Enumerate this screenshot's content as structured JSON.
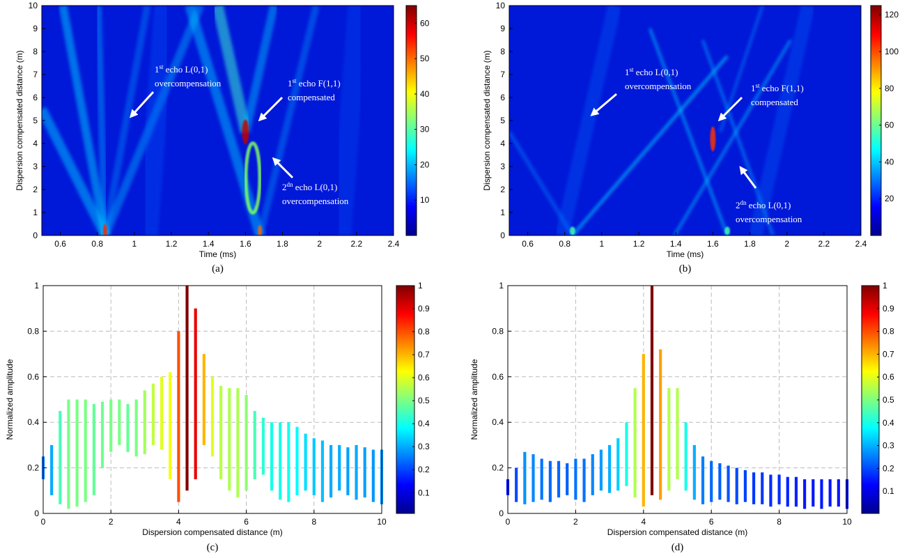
{
  "chart_data": [
    {
      "type": "heatmap",
      "caption": "(a)",
      "xlabel": "Time (ms)",
      "ylabel": "Dispersion compensated distance (m)",
      "xlim": [
        0.5,
        2.4
      ],
      "xticks": [
        0.6,
        0.8,
        1,
        1.2,
        1.4,
        1.6,
        1.8,
        2,
        2.2,
        2.4
      ],
      "ylim": [
        0,
        10
      ],
      "yticks": [
        0,
        1,
        2,
        3,
        4,
        5,
        6,
        7,
        8,
        9,
        10
      ],
      "colormap": "jet",
      "colorbar": {
        "lim": [
          0,
          65
        ],
        "ticks": [
          10,
          20,
          30,
          40,
          50,
          60
        ]
      },
      "annotations": [
        {
          "lead": "1",
          "sup": "st",
          "rest": " echo L(0,1)",
          "next": "overcompensation"
        },
        {
          "lead": "1",
          "sup": "st",
          "rest": " echo F(1,1)",
          "next": "compensated"
        },
        {
          "lead": "2",
          "sup": "dn",
          "rest": " echo L(0,1)",
          "next": "overcompensation"
        }
      ]
    },
    {
      "type": "heatmap",
      "caption": "(b)",
      "xlabel": "Time (ms)",
      "ylabel": "Dispersion compensated distance (m)",
      "xlim": [
        0.5,
        2.4
      ],
      "xticks": [
        0.6,
        0.8,
        1,
        1.2,
        1.4,
        1.6,
        1.8,
        2,
        2.2,
        2.4
      ],
      "ylim": [
        0,
        10
      ],
      "yticks": [
        0,
        1,
        2,
        3,
        4,
        5,
        6,
        7,
        8,
        9,
        10
      ],
      "colormap": "jet",
      "colorbar": {
        "lim": [
          0,
          125
        ],
        "ticks": [
          20,
          40,
          60,
          80,
          100,
          120
        ]
      },
      "annotations": [
        {
          "lead": "1",
          "sup": "st",
          "rest": " echo L(0,1)",
          "next": "overcompensation"
        },
        {
          "lead": "1",
          "sup": "st",
          "rest": " echo F(1,1)",
          "next": "compensated"
        },
        {
          "lead": "2",
          "sup": "dn",
          "rest": " echo L(0,1)",
          "next": "overcompensation"
        }
      ]
    },
    {
      "type": "range",
      "caption": "(c)",
      "xlabel": "Dispersion compensated distance (m)",
      "ylabel": "Normalized amplitude",
      "xlim": [
        0,
        10
      ],
      "xticks": [
        0,
        2,
        4,
        6,
        8,
        10
      ],
      "ylim": [
        0,
        1
      ],
      "yticks": [
        0,
        0.2,
        0.4,
        0.6,
        0.8,
        1
      ],
      "grid": true,
      "colormap": "jet",
      "colorbar": {
        "lim": [
          0.01,
          1
        ],
        "ticks": [
          0.1,
          0.2,
          0.3,
          0.4,
          0.5,
          0.6,
          0.7,
          0.8,
          0.9,
          1
        ]
      },
      "x": [
        0,
        0.25,
        0.5,
        0.75,
        1,
        1.25,
        1.5,
        1.75,
        2,
        2.25,
        2.5,
        2.75,
        3,
        3.25,
        3.5,
        3.75,
        4,
        4.25,
        4.5,
        4.75,
        5,
        5.25,
        5.5,
        5.75,
        6,
        6.25,
        6.5,
        6.75,
        7,
        7.25,
        7.5,
        7.75,
        8,
        8.25,
        8.5,
        8.75,
        9,
        9.25,
        9.5,
        9.75,
        10
      ],
      "series": [
        {
          "values": [
            0.25,
            0.3,
            0.45,
            0.5,
            0.5,
            0.5,
            0.48,
            0.49,
            0.5,
            0.5,
            0.48,
            0.5,
            0.54,
            0.57,
            0.6,
            0.62,
            0.8,
            1,
            0.9,
            0.7,
            0.6,
            0.56,
            0.55,
            0.55,
            0.52,
            0.45,
            0.42,
            0.4,
            0.4,
            0.4,
            0.38,
            0.35,
            0.33,
            0.32,
            0.3,
            0.3,
            0.29,
            0.3,
            0.29,
            0.28,
            0.28
          ]
        },
        {
          "values": [
            0.15,
            0.08,
            0.04,
            0.02,
            0.03,
            0.05,
            0.08,
            0.2,
            0.27,
            0.3,
            0.27,
            0.25,
            0.26,
            0.3,
            0.28,
            0.15,
            0.05,
            0.1,
            0.15,
            0.3,
            0.25,
            0.15,
            0.1,
            0.07,
            0.1,
            0.15,
            0.17,
            0.1,
            0.06,
            0.05,
            0.08,
            0.1,
            0.08,
            0.05,
            0.07,
            0.1,
            0.08,
            0.06,
            0.07,
            0.05,
            0.04
          ]
        }
      ]
    },
    {
      "type": "range",
      "caption": "(d)",
      "xlabel": "Dispersion compensated distance (m)",
      "ylabel": "Normalized amplitude",
      "xlim": [
        0,
        10
      ],
      "xticks": [
        0,
        2,
        4,
        6,
        8,
        10
      ],
      "ylim": [
        0,
        1
      ],
      "yticks": [
        0,
        0.2,
        0.4,
        0.6,
        0.8,
        1
      ],
      "grid": true,
      "colormap": "jet",
      "colorbar": {
        "lim": [
          0.003,
          1
        ],
        "ticks": [
          0.1,
          0.2,
          0.3,
          0.4,
          0.5,
          0.6,
          0.7,
          0.8,
          0.9,
          1
        ]
      },
      "x": [
        0,
        0.25,
        0.5,
        0.75,
        1,
        1.25,
        1.5,
        1.75,
        2,
        2.25,
        2.5,
        2.75,
        3,
        3.25,
        3.5,
        3.75,
        4,
        4.25,
        4.5,
        4.75,
        5,
        5.25,
        5.5,
        5.75,
        6,
        6.25,
        6.5,
        6.75,
        7,
        7.25,
        7.5,
        7.75,
        8,
        8.25,
        8.5,
        8.75,
        9,
        9.25,
        9.5,
        9.75,
        10
      ],
      "series": [
        {
          "values": [
            0.15,
            0.2,
            0.27,
            0.26,
            0.24,
            0.23,
            0.23,
            0.22,
            0.24,
            0.24,
            0.26,
            0.28,
            0.3,
            0.33,
            0.4,
            0.55,
            0.7,
            1,
            0.72,
            0.55,
            0.55,
            0.4,
            0.3,
            0.25,
            0.23,
            0.22,
            0.21,
            0.2,
            0.19,
            0.18,
            0.18,
            0.17,
            0.17,
            0.16,
            0.16,
            0.15,
            0.15,
            0.15,
            0.15,
            0.15,
            0.15
          ]
        },
        {
          "values": [
            0.08,
            0.05,
            0.04,
            0.05,
            0.06,
            0.05,
            0.07,
            0.08,
            0.06,
            0.05,
            0.08,
            0.1,
            0.09,
            0.1,
            0.12,
            0.07,
            0.03,
            0.08,
            0.06,
            0.1,
            0.15,
            0.1,
            0.06,
            0.04,
            0.05,
            0.06,
            0.05,
            0.04,
            0.05,
            0.04,
            0.04,
            0.03,
            0.04,
            0.03,
            0.03,
            0.02,
            0.03,
            0.02,
            0.03,
            0.03,
            0.02
          ]
        }
      ]
    }
  ]
}
